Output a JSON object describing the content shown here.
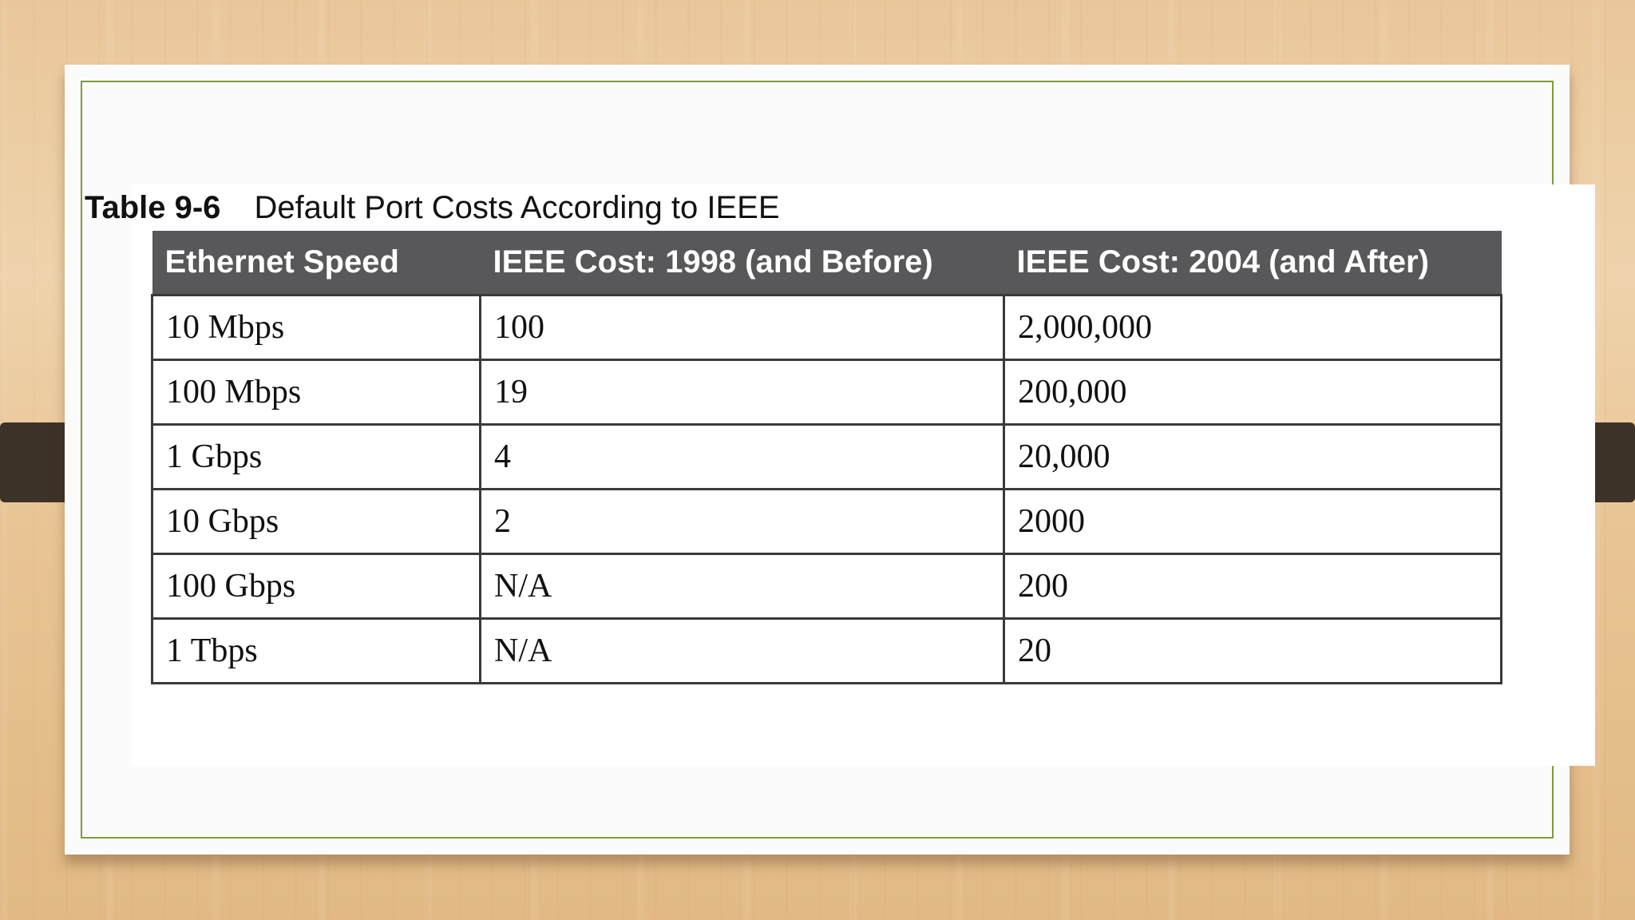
{
  "caption": {
    "number": "Table 9-6",
    "title": "Default Port Costs According to IEEE"
  },
  "columns": [
    "Ethernet Speed",
    "IEEE Cost: 1998 (and Before)",
    "IEEE Cost: 2004 (and After)"
  ],
  "rows": [
    [
      "10 Mbps",
      "100",
      "2,000,000"
    ],
    [
      "100 Mbps",
      "19",
      "200,000"
    ],
    [
      "1 Gbps",
      "4",
      "20,000"
    ],
    [
      "10 Gbps",
      "2",
      "2000"
    ],
    [
      "100 Gbps",
      "N/A",
      "200"
    ],
    [
      "1 Tbps",
      "N/A",
      "20"
    ]
  ],
  "colors": {
    "header_bg": "#58585a",
    "frame_border": "#7f9a3a",
    "tab": "#3d3228"
  }
}
